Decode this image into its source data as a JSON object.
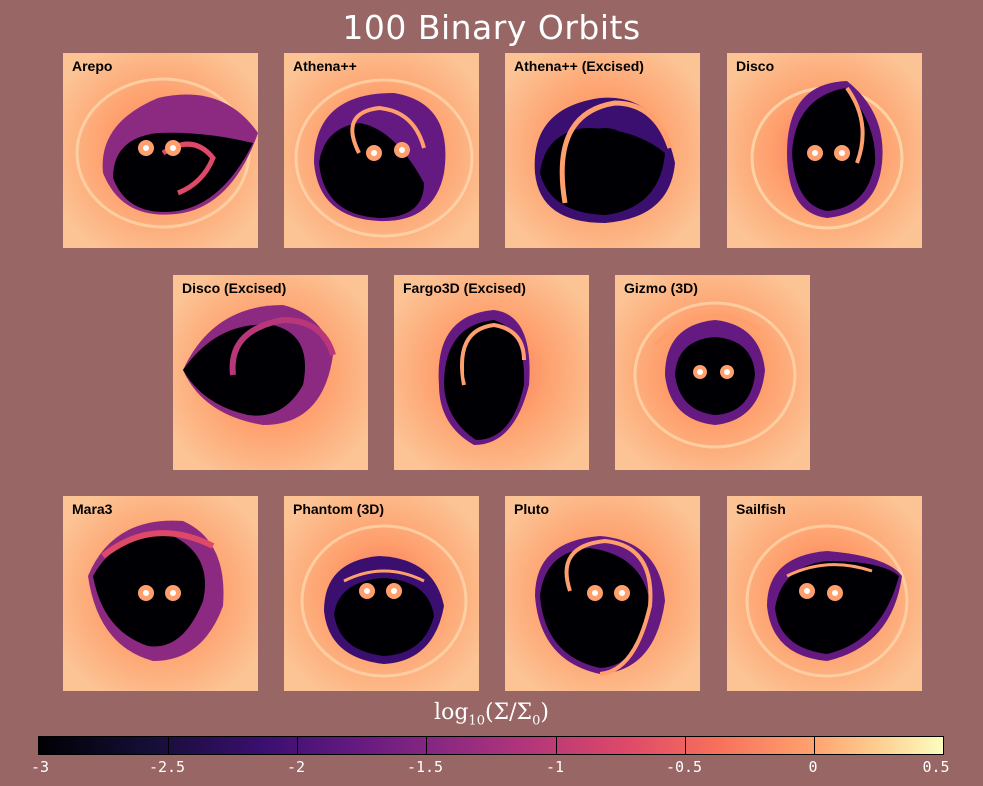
{
  "title": "100 Binary Orbits",
  "panels": [
    {
      "label": "Arepo"
    },
    {
      "label": "Athena++"
    },
    {
      "label": "Athena++ (Excised)"
    },
    {
      "label": "Disco"
    },
    {
      "label": "Disco (Excised)"
    },
    {
      "label": "Fargo3D (Excised)"
    },
    {
      "label": "Gizmo (3D)"
    },
    {
      "label": "Mara3"
    },
    {
      "label": "Phantom (3D)"
    },
    {
      "label": "Pluto"
    },
    {
      "label": "Sailfish"
    }
  ],
  "colorbar": {
    "label_main": "log",
    "label_sub": "10",
    "label_expr": "(Σ/Σ",
    "label_sub2": "0",
    "label_close": ")",
    "ticks": [
      "-3",
      "-2.5",
      "-2",
      "-1.5",
      "-1",
      "-0.5",
      "0",
      "0.5"
    ],
    "tick_values": [
      -3,
      -2.5,
      -2,
      -1.5,
      -1,
      -0.5,
      0,
      0.5
    ],
    "range": [
      -3,
      0.5
    ],
    "colormap": "magma"
  },
  "colors": {
    "background": "#976665",
    "disk": "#fcc495",
    "cavity": "#000004",
    "streamer": "#8c2981"
  }
}
